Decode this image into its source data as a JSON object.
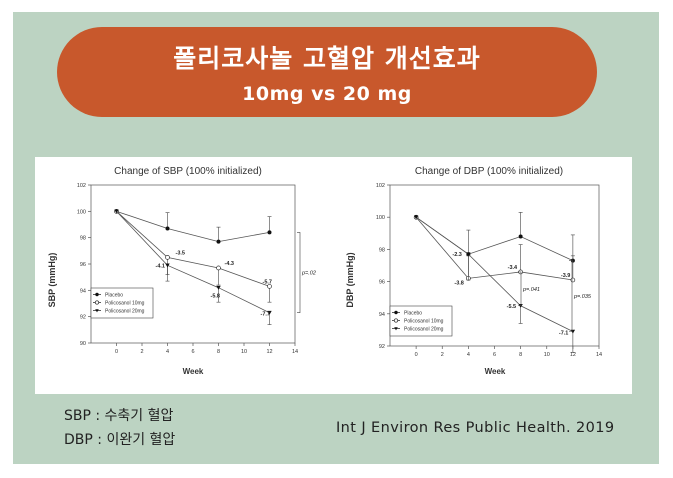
{
  "header": {
    "title": "폴리코사놀 고혈압 개선효과",
    "subtitle": "10mg vs 20 mg"
  },
  "notes": {
    "sbp": "SBP : 수축기 혈압",
    "dbp": "DBP : 이완기 혈압"
  },
  "citation": "Int J Environ Res Public Health. 2019",
  "colors": {
    "background": "#bcd3c2",
    "banner": "#c8582c",
    "banner_text": "#ffffff"
  },
  "chart_data": [
    {
      "type": "line",
      "title": "Change of SBP (100% initialized)",
      "xlabel": "Week",
      "ylabel": "SBP (mmHg)",
      "xlim": [
        -2,
        14
      ],
      "ylim": [
        90,
        102
      ],
      "xticks": [
        0,
        2,
        4,
        6,
        8,
        10,
        12,
        14
      ],
      "yticks": [
        90,
        92,
        94,
        96,
        98,
        100,
        102
      ],
      "x": [
        0,
        4,
        8,
        12
      ],
      "series": [
        {
          "name": "Placebo",
          "marker": "filled-circle",
          "values": [
            100,
            98.7,
            97.7,
            98.4
          ],
          "errors": [
            0,
            1.2,
            1.1,
            1.2
          ]
        },
        {
          "name": "Policosanol 10mg",
          "marker": "open-circle",
          "values": [
            100,
            96.5,
            95.7,
            94.3
          ],
          "errors": [
            0,
            1.3,
            1.3,
            1.2
          ],
          "labels": [
            "",
            "-3.5",
            "-4.3",
            "-5.7"
          ]
        },
        {
          "name": "Policosanol 20mg",
          "marker": "filled-triangle",
          "values": [
            100,
            95.9,
            94.2,
            92.3
          ],
          "errors": [
            0,
            1.2,
            1.1,
            0.9
          ],
          "labels": [
            "",
            "-4.1",
            "-5.8",
            "-7.7"
          ]
        }
      ],
      "annotations": [
        "p=.02"
      ],
      "legend": "bottom-left",
      "grid": false
    },
    {
      "type": "line",
      "title": "Change of DBP (100% initialized)",
      "xlabel": "Week",
      "ylabel": "DBP (mmHg)",
      "xlim": [
        -2,
        14
      ],
      "ylim": [
        92,
        102
      ],
      "xticks": [
        0,
        2,
        4,
        6,
        8,
        10,
        12,
        14
      ],
      "yticks": [
        92,
        94,
        96,
        98,
        100,
        102
      ],
      "x": [
        0,
        4,
        8,
        12
      ],
      "series": [
        {
          "name": "Placebo",
          "marker": "filled-circle",
          "values": [
            100,
            97.7,
            98.8,
            97.3
          ],
          "errors": [
            0,
            1.5,
            1.5,
            1.6
          ]
        },
        {
          "name": "Policosanol 10mg",
          "marker": "open-circle",
          "values": [
            100,
            96.2,
            96.6,
            96.1
          ],
          "errors": [
            0,
            1.4,
            1.7,
            1.5
          ],
          "labels": [
            "",
            "-3.8",
            "-3.4",
            "-3.9"
          ]
        },
        {
          "name": "Policosanol 20mg",
          "marker": "filled-triangle",
          "values": [
            100,
            97.7,
            94.5,
            92.9
          ],
          "errors": [
            0,
            1.6,
            1.1,
            1.3
          ],
          "labels": [
            "",
            "-2.3",
            "-5.5",
            "-7.1"
          ]
        }
      ],
      "annotations": [
        "p=.041",
        "p=.035"
      ],
      "legend": "bottom-left",
      "grid": false
    }
  ]
}
